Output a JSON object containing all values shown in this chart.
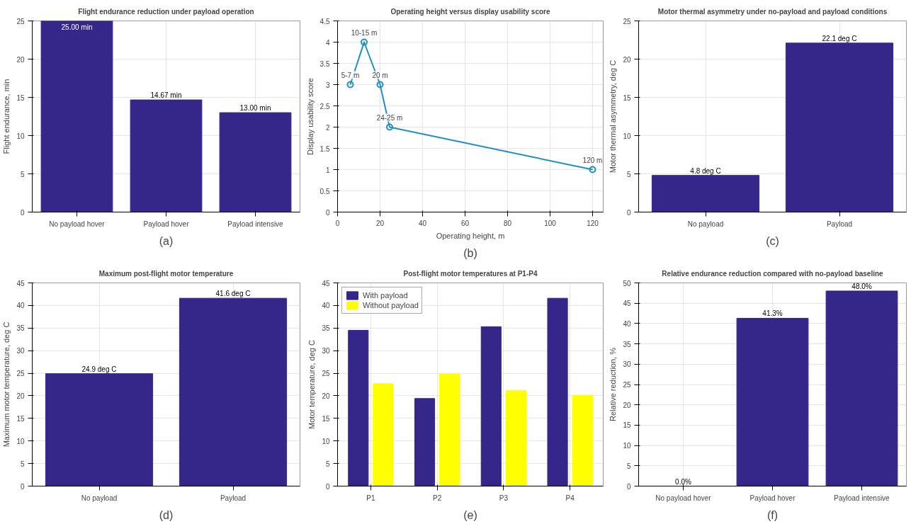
{
  "chart_data": [
    {
      "type": "bar",
      "title": "Flight endurance reduction under payload operation",
      "ylabel": "Flight endurance, min",
      "categories": [
        "No payload hover",
        "Payload hover",
        "Payload intensive"
      ],
      "values": [
        25,
        14.67,
        13
      ],
      "color": "#35278a",
      "value_labels": [
        "25.00 min",
        "14.67 min",
        "13.00 min"
      ],
      "ylim": [
        0,
        25
      ],
      "yticks": [
        0,
        5,
        10,
        15,
        20,
        25
      ],
      "grid": true,
      "annotations": [
        "(a)"
      ]
    },
    {
      "type": "line",
      "title": "Operating height versus display usability score",
      "xlabel": "Operating height, m",
      "ylabel": "Display usability score",
      "x": [
        6,
        12.5,
        20,
        24.5,
        120
      ],
      "values": [
        3,
        4,
        3,
        2,
        1
      ],
      "color": "#1f8fbf",
      "marker": "circle",
      "xlim": [
        0,
        125
      ],
      "xticks": [
        0,
        20,
        40,
        60,
        80,
        100,
        120
      ],
      "ylim": [
        0,
        4.5
      ],
      "yticks": [
        0,
        0.5,
        1,
        1.5,
        2,
        2.5,
        3,
        3.5,
        4,
        4.5
      ],
      "grid": true,
      "annotations": [
        {
          "text": "5-7 m",
          "x": 6,
          "y": 3
        },
        {
          "text": "10-15 m",
          "x": 12.5,
          "y": 4
        },
        {
          "text": "20 m",
          "x": 20,
          "y": 3
        },
        {
          "text": "24-25 m",
          "x": 24.5,
          "y": 2
        },
        {
          "text": "120 m",
          "x": 120,
          "y": 1
        },
        "(b)"
      ]
    },
    {
      "type": "bar",
      "title": "Motor thermal asymmetry under no-payload and payload conditions",
      "ylabel": "Motor thermal asymmetry, deg C",
      "categories": [
        "No payload",
        "Payload"
      ],
      "values": [
        4.8,
        22.1
      ],
      "color": "#35278a",
      "value_labels": [
        "4.8 deg C",
        "22.1 deg C"
      ],
      "ylim": [
        0,
        25
      ],
      "yticks": [
        0,
        5,
        10,
        15,
        20,
        25
      ],
      "grid": true,
      "annotations": [
        "(c)"
      ]
    },
    {
      "type": "bar",
      "title": "Maximum post-flight motor temperature",
      "ylabel": "Maximum motor temperature, deg C",
      "categories": [
        "No payload",
        "Payload"
      ],
      "values": [
        24.9,
        41.6
      ],
      "color": "#35278a",
      "value_labels": [
        "24.9 deg C",
        "41.6 deg C"
      ],
      "ylim": [
        0,
        45
      ],
      "yticks": [
        0,
        5,
        10,
        15,
        20,
        25,
        30,
        35,
        40,
        45
      ],
      "grid": true,
      "annotations": [
        "(d)"
      ]
    },
    {
      "type": "bar",
      "title": "Post-flight motor temperatures at P1-P4",
      "ylabel": "Motor temperature, deg C",
      "categories": [
        "P1",
        "P2",
        "P3",
        "P4"
      ],
      "series": [
        {
          "name": "With payload",
          "color": "#35278a",
          "values": [
            34.5,
            19.4,
            35.3,
            41.6
          ]
        },
        {
          "name": "Without payload",
          "color": "#ffff00",
          "values": [
            22.7,
            24.8,
            21.2,
            20.1
          ]
        }
      ],
      "ylim": [
        0,
        45
      ],
      "yticks": [
        0,
        5,
        10,
        15,
        20,
        25,
        30,
        35,
        40,
        45
      ],
      "grid": true,
      "legend": "top left",
      "annotations": [
        "(e)"
      ]
    },
    {
      "type": "bar",
      "title": "Relative endurance reduction compared with no-payload baseline",
      "ylabel": "Relative reduction, %",
      "categories": [
        "No payload hover",
        "Payload hover",
        "Payload intensive"
      ],
      "values": [
        0,
        41.3,
        48.0
      ],
      "color": "#35278a",
      "value_labels": [
        "0.0%",
        "41.3%",
        "48.0%"
      ],
      "ylim": [
        0,
        50
      ],
      "yticks": [
        0,
        5,
        10,
        15,
        20,
        25,
        30,
        35,
        40,
        45,
        50
      ],
      "grid": true,
      "annotations": [
        "(f)"
      ]
    }
  ]
}
